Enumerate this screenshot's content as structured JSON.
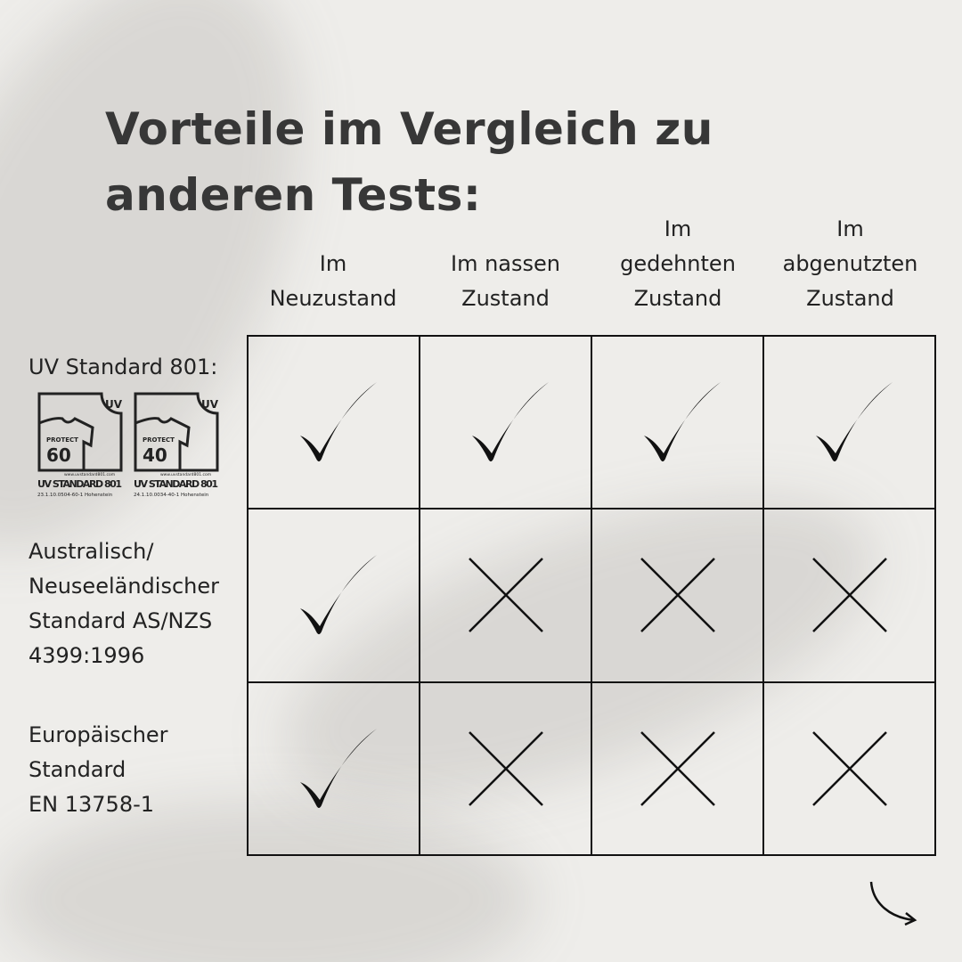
{
  "title": "Vorteile im Vergleich zu anderen Tests:",
  "columns": [
    "Im\nNeuzustand",
    "Im nassen\nZustand",
    "Im\ngedehnten\nZustand",
    "Im\nabgenutzten\nZustand"
  ],
  "rows": [
    {
      "label": "UV Standard 801:",
      "values": [
        "check",
        "check",
        "check",
        "check"
      ]
    },
    {
      "label": "Australisch/\nNeuseeländischer\nStandard AS/NZS\n4399:1996",
      "values": [
        "check",
        "cross",
        "cross",
        "cross"
      ]
    },
    {
      "label": "Europäischer\nStandard\nEN 13758-1",
      "values": [
        "check",
        "cross",
        "cross",
        "cross"
      ]
    }
  ],
  "logos": [
    {
      "uv": "UV",
      "protect": "PROTECT",
      "value": "60",
      "url": "www.uvstandard801.com",
      "name": "UV STANDARD 801",
      "code": "23.1.10.0504-60-1",
      "lab": "Hohenstein"
    },
    {
      "uv": "UV",
      "protect": "PROTECT",
      "value": "40",
      "url": "www.uvstandard801.com",
      "name": "UV STANDARD 801",
      "code": "24.1.10.0034-40-1",
      "lab": "Hohenstein"
    }
  ],
  "next_icon": "curved-arrow-right-icon"
}
